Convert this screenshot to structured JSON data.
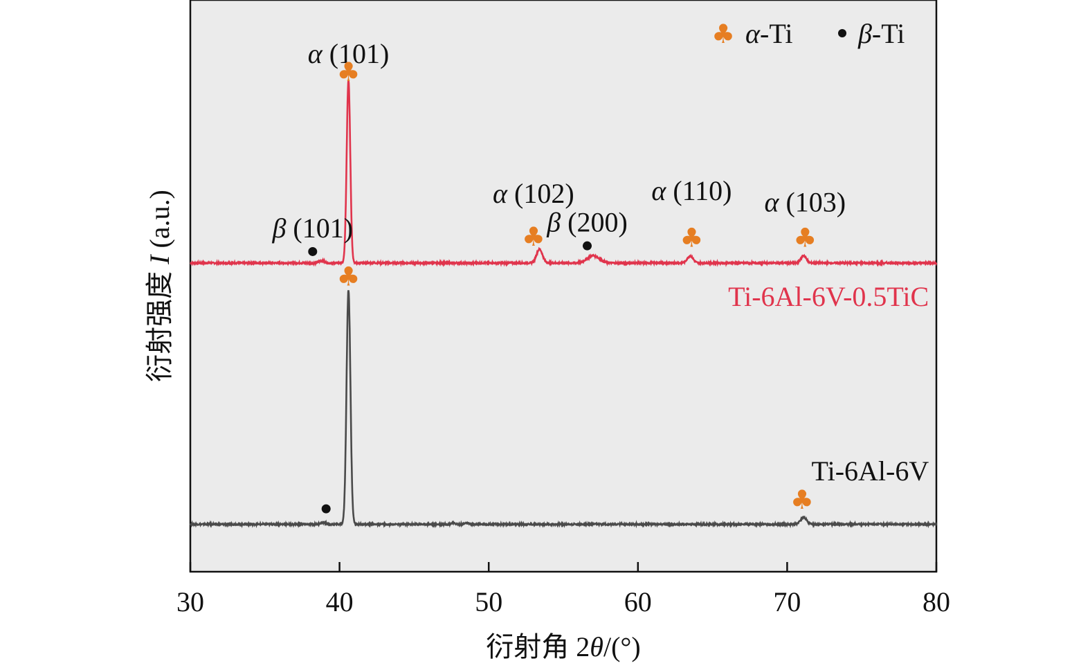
{
  "chart_data": {
    "type": "line",
    "xlabel": "衍射角 2θ/(°)",
    "xlabel_parts": {
      "prefix": "衍射角 2",
      "symbol": "θ",
      "suffix": "/(°)"
    },
    "ylabel": "衍射强度 I (a.u.)",
    "ylabel_parts": {
      "prefix": "衍射强度 ",
      "symbol": "I",
      "suffix": " (a.u.)"
    },
    "xlim": [
      30,
      80
    ],
    "ylim": [
      0,
      100
    ],
    "xticks": [
      30,
      40,
      50,
      60,
      70,
      80
    ],
    "yticks": [],
    "grid": false,
    "background": "#ebebeb",
    "legend": {
      "position": "top-right",
      "entries": [
        {
          "symbol": "♣",
          "greek": "α",
          "text": "-Ti",
          "color": "#e67e22"
        },
        {
          "symbol": "•",
          "greek": "β",
          "text": "-Ti",
          "color": "#111111"
        }
      ]
    },
    "series": [
      {
        "name": "Ti-6Al-6V-0.5TiC",
        "color": "#e0344c",
        "baseline": 54,
        "peaks": [
          {
            "x": 38.8,
            "height": 0.4,
            "width": 0.18
          },
          {
            "x": 40.6,
            "height": 32,
            "width": 0.12
          },
          {
            "x": 53.4,
            "height": 2.4,
            "width": 0.2
          },
          {
            "x": 57.0,
            "height": 1.3,
            "width": 0.4
          },
          {
            "x": 63.5,
            "height": 1.2,
            "width": 0.2
          },
          {
            "x": 71.1,
            "height": 1.3,
            "width": 0.18
          }
        ]
      },
      {
        "name": "Ti-6Al-6V",
        "color": "#4a4a4a",
        "baseline": 8.3,
        "peaks": [
          {
            "x": 38.9,
            "height": 0.3,
            "width": 0.18
          },
          {
            "x": 40.6,
            "height": 41,
            "width": 0.13
          },
          {
            "x": 47.6,
            "height": 0.2,
            "width": 0.15
          },
          {
            "x": 48.5,
            "height": 0.2,
            "width": 0.15
          },
          {
            "x": 71.1,
            "height": 1.2,
            "width": 0.2
          }
        ]
      }
    ],
    "annotations": [
      {
        "greek": "α",
        "label": "(101)",
        "x": 40.6,
        "y": 89,
        "marker": "♣",
        "marker_y": 87.3,
        "marker_color": "#e67e22"
      },
      {
        "greek": "β",
        "label": "(101)",
        "x": 38.2,
        "y": 58.5,
        "marker": "•",
        "marker_y": 56,
        "marker_color": "#111111"
      },
      {
        "greek": "α",
        "label": "(102)",
        "x": 53.0,
        "y": 64.5,
        "marker": "♣",
        "marker_y": 58.5,
        "marker_color": "#e67e22"
      },
      {
        "greek": "β",
        "label": "(200)",
        "x": 56.6,
        "y": 59.5,
        "marker": "•",
        "marker_y": 57,
        "marker_color": "#111111"
      },
      {
        "greek": "α",
        "label": "(110)",
        "x": 63.6,
        "y": 65,
        "marker": "♣",
        "marker_y": 58.3,
        "marker_color": "#e67e22"
      },
      {
        "greek": "α",
        "label": "(103)",
        "x": 71.2,
        "y": 63,
        "marker": "♣",
        "marker_y": 58.3,
        "marker_color": "#e67e22"
      },
      {
        "greek": "",
        "label": "",
        "x": 40.6,
        "y": 0,
        "marker": "♣",
        "marker_y": 51.5,
        "marker_color": "#e67e22"
      },
      {
        "greek": "",
        "label": "",
        "x": 39.1,
        "y": 0,
        "marker": "•",
        "marker_y": 11,
        "marker_color": "#111111"
      },
      {
        "greek": "",
        "label": "",
        "x": 71.0,
        "y": 0,
        "marker": "♣",
        "marker_y": 12.5,
        "marker_color": "#e67e22"
      }
    ],
    "series_labels": [
      {
        "series": 0,
        "text": "Ti-6Al-6V-0.5TiC",
        "x": 79.5,
        "y": 46.5,
        "color": "#e0344c"
      },
      {
        "series": 1,
        "text": "Ti-6Al-6V",
        "x": 79.5,
        "y": 16,
        "color": "#111111"
      }
    ]
  }
}
